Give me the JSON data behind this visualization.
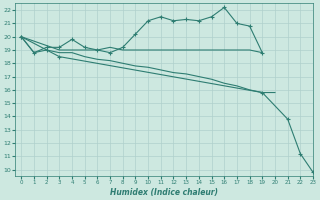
{
  "xlabel": "Humidex (Indice chaleur)",
  "bg_color": "#cde8e0",
  "line_color": "#2e7d72",
  "grid_color": "#b0d0cc",
  "xlim": [
    -0.5,
    23
  ],
  "ylim": [
    9.5,
    22.5
  ],
  "xticks": [
    0,
    1,
    2,
    3,
    4,
    5,
    6,
    7,
    8,
    9,
    10,
    11,
    12,
    13,
    14,
    15,
    16,
    17,
    18,
    19,
    20,
    21,
    22,
    23
  ],
  "yticks": [
    10,
    11,
    12,
    13,
    14,
    15,
    16,
    17,
    18,
    19,
    20,
    21,
    22
  ],
  "series": [
    {
      "x": [
        0,
        1,
        2,
        3,
        4,
        5,
        6,
        7,
        8,
        9,
        10,
        11,
        12,
        13,
        14,
        15,
        16,
        17,
        18,
        19
      ],
      "y": [
        20,
        18.8,
        19.2,
        19.2,
        19.8,
        19.2,
        19.0,
        18.8,
        19.2,
        20.2,
        21.2,
        21.5,
        21.2,
        21.3,
        21.2,
        21.5,
        22.2,
        21.0,
        20.8,
        18.8
      ],
      "has_markers": true
    },
    {
      "x": [
        0,
        3,
        4,
        5,
        6,
        7,
        8,
        9,
        10,
        11,
        12,
        13,
        14,
        15,
        16,
        17,
        18,
        19
      ],
      "y": [
        20,
        19.0,
        19.0,
        19.0,
        19.0,
        19.2,
        19.0,
        19.0,
        19.0,
        19.0,
        19.0,
        19.0,
        19.0,
        19.0,
        19.0,
        19.0,
        19.0,
        18.8
      ],
      "has_markers": false
    },
    {
      "x": [
        0,
        1,
        2,
        3,
        4,
        5,
        6,
        7,
        8,
        9,
        10,
        11,
        12,
        13,
        14,
        15,
        16,
        17,
        18,
        19,
        20
      ],
      "y": [
        20,
        18.8,
        19.0,
        18.8,
        18.8,
        18.5,
        18.3,
        18.2,
        18.0,
        17.8,
        17.7,
        17.5,
        17.3,
        17.2,
        17.0,
        16.8,
        16.5,
        16.3,
        16.0,
        15.8,
        15.8
      ],
      "has_markers": false
    },
    {
      "x": [
        0,
        2,
        3,
        19,
        21,
        22,
        23
      ],
      "y": [
        20,
        19.0,
        18.5,
        15.8,
        13.8,
        11.2,
        9.8
      ],
      "has_markers": true
    }
  ]
}
